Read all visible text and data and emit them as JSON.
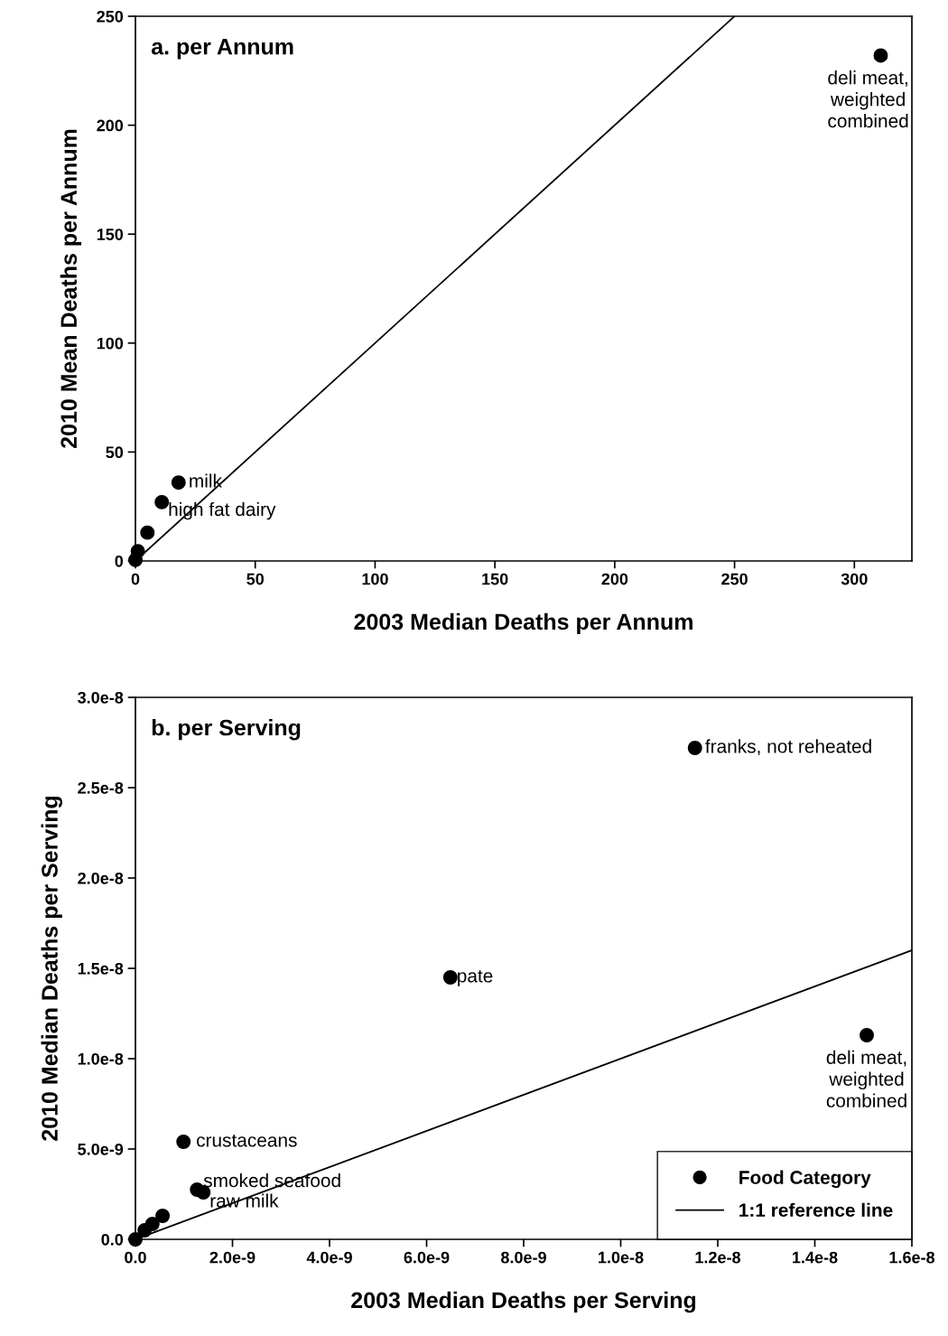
{
  "chart_data": [
    {
      "type": "scatter",
      "title": "a. per Annum",
      "xlabel": "2003 Median Deaths per Annum",
      "ylabel": "2010 Mean Deaths per Annum",
      "xlim": [
        0,
        324
      ],
      "ylim": [
        0,
        250
      ],
      "xticks": [
        0,
        50,
        100,
        150,
        200,
        250,
        300
      ],
      "yticks": [
        0,
        50,
        100,
        150,
        200,
        250
      ],
      "grid": false,
      "legend": false,
      "series": [
        {
          "color": "#000000",
          "marker": "circle",
          "x": [
            311,
            18,
            11,
            5,
            1,
            0
          ],
          "values": [
            232,
            36,
            27,
            13,
            4.5,
            0.5
          ]
        },
        {
          "type": "line",
          "color": "#000000",
          "x": [
            0,
            250
          ],
          "values": [
            0,
            250
          ]
        }
      ],
      "annotations": [
        {
          "text": "deli meat,\nweighted\ncombined",
          "x": 311,
          "y": 232
        },
        {
          "text": "milk",
          "x": 18,
          "y": 36
        },
        {
          "text": "high fat dairy",
          "x": 11,
          "y": 27
        }
      ]
    },
    {
      "type": "scatter",
      "title": "b. per Serving",
      "xlabel": "2003 Median Deaths per Serving",
      "ylabel": "2010 Median Deaths per Serving",
      "xlim": [
        0,
        1.6e-08
      ],
      "ylim": [
        0,
        3e-08
      ],
      "xticks": [
        {
          "value": 0,
          "label": "0.0"
        },
        {
          "value": 2e-09,
          "label": "2.0e-9"
        },
        {
          "value": 4e-09,
          "label": "4.0e-9"
        },
        {
          "value": 6e-09,
          "label": "6.0e-9"
        },
        {
          "value": 8e-09,
          "label": "8.0e-9"
        },
        {
          "value": 1e-08,
          "label": "1.0e-8"
        },
        {
          "value": 1.2e-08,
          "label": "1.2e-8"
        },
        {
          "value": 1.4e-08,
          "label": "1.4e-8"
        },
        {
          "value": 1.6e-08,
          "label": "1.6e-8"
        }
      ],
      "yticks": [
        {
          "value": 0,
          "label": "0.0"
        },
        {
          "value": 5e-09,
          "label": "5.0e-9"
        },
        {
          "value": 1e-08,
          "label": "1.0e-8"
        },
        {
          "value": 1.5e-08,
          "label": "1.5e-8"
        },
        {
          "value": 2e-08,
          "label": "2.0e-8"
        },
        {
          "value": 2.5e-08,
          "label": "2.5e-8"
        },
        {
          "value": 3e-08,
          "label": "3.0e-8"
        }
      ],
      "grid": false,
      "legend": "bottom right",
      "series": [
        {
          "name": "Food Category",
          "color": "#000000",
          "marker": "circle",
          "x": [
            1.153e-08,
            6.49e-09,
            1.507e-08,
            9.9e-10,
            1.27e-09,
            1.4e-09,
            5.6e-10,
            3.5e-10,
            1.9e-10,
            0
          ],
          "values": [
            2.72e-08,
            1.45e-08,
            1.13e-08,
            5.4e-09,
            2.75e-09,
            2.6e-09,
            1.3e-09,
            8.5e-10,
            5e-10,
            0
          ]
        },
        {
          "type": "line",
          "name": "1:1 reference line",
          "color": "#000000",
          "x": [
            0,
            1.6e-08
          ],
          "values": [
            0,
            1.6e-08
          ]
        }
      ],
      "annotations": [
        {
          "text": "franks, not reheated",
          "x": 1.153e-08,
          "y": 2.72e-08
        },
        {
          "text": "pate",
          "x": 6.49e-09,
          "y": 1.45e-08
        },
        {
          "text": "deli meat,\nweighted\ncombined",
          "x": 1.507e-08,
          "y": 1.13e-08
        },
        {
          "text": "crustaceans",
          "x": 9.9e-10,
          "y": 5.4e-09
        },
        {
          "text": "smoked seafood",
          "x": 1.27e-09,
          "y": 2.75e-09
        },
        {
          "text": "raw milk",
          "x": 1.4e-09,
          "y": 2.6e-09
        }
      ]
    }
  ]
}
